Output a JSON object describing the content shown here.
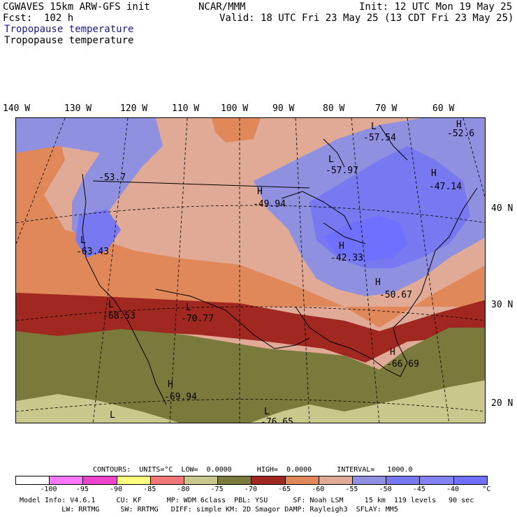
{
  "header": {
    "model": "CGWAVES 15km ARW-GFS init",
    "center": "NCAR/MMM",
    "init": "Init: 12 UTC Mon 19 May 25",
    "fcst": "Fcst:  102 h",
    "valid": "Valid: 18 UTC Fri 23 May 25 (13 CDT Fri 23 May 25)",
    "field_title_1": "Tropopause temperature",
    "field_title_2": "Tropopause temperature"
  },
  "axes": {
    "lon_labels": [
      "140 W",
      "130 W",
      "120 W",
      "110 W",
      "100 W",
      "90 W",
      "80 W",
      "70 W",
      "60 W"
    ],
    "lat_labels": [
      "40 N",
      "30 N",
      "20 N"
    ]
  },
  "extrema": [
    {
      "letter": "L",
      "value": "-57.54"
    },
    {
      "letter": "H",
      "value": "-52.6"
    },
    {
      "letter": "L",
      "value": "-57.97"
    },
    {
      "letter": "",
      "value": "-53.7"
    },
    {
      "letter": "H",
      "value": "-47.14"
    },
    {
      "letter": "H",
      "value": "-49.94"
    },
    {
      "letter": "L",
      "value": "-63.43"
    },
    {
      "letter": "H",
      "value": "-42.33"
    },
    {
      "letter": "H",
      "value": "-50.67"
    },
    {
      "letter": "L",
      "value": "-68.53"
    },
    {
      "letter": "L",
      "value": "-70.77"
    },
    {
      "letter": "H",
      "value": "-66.69"
    },
    {
      "letter": "H",
      "value": "-69.94"
    },
    {
      "letter": "L",
      "value": ""
    },
    {
      "letter": "L",
      "value": "-76.65"
    }
  ],
  "contours": {
    "text": "CONTOURS:  UNITS=°C  LOW=  0.0000      HIGH=  0.0000      INTERVAL=   1000.0"
  },
  "scale": {
    "colors": [
      "#ffffff",
      "#ff77ff",
      "#ee44cc",
      "#ffff80",
      "#f07878",
      "#c8c88c",
      "#7a7a3c",
      "#a02820",
      "#e0885a",
      "#e0aa96",
      "#9090e0",
      "#7878f0",
      "#8282f4",
      "#7070ff"
    ],
    "ticks": [
      "-100",
      "-95",
      "-90",
      "-85",
      "-80",
      "-75",
      "-70",
      "-65",
      "-60",
      "-55",
      "-50",
      "-45",
      "-40",
      "°C"
    ]
  },
  "footer": {
    "line1": "Model Info: V4.6.1     CU: KF      MP: WDM 6class  PBL: YSU      SF: Noah LSM     15 km  119 levels   90 sec",
    "line2": "          LW: RRTMG     SW: RRTMG   DIFF: simple KM: 2D Smagor DAMP: Rayleigh3  SFLAY: MM5"
  }
}
